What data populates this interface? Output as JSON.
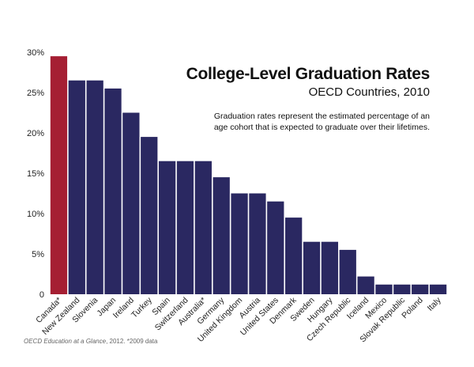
{
  "chart_data": {
    "type": "bar",
    "title": "College-Level Graduation Rates",
    "subtitle": "OECD Countries, 2010",
    "description": "Graduation rates represent the estimated percentage of an age cohort that is expected to graduate over their lifetimes.",
    "source_title": "OECD Education at a Glance",
    "source_rest": ", 2012.   *2009 data",
    "categories": [
      "Canada*",
      "New Zealand",
      "Slovenia",
      "Japan",
      "Ireland",
      "Turkey",
      "Spain",
      "Switzerland",
      "Australia*",
      "Germany",
      "United Kingdom",
      "Austria",
      "United States",
      "Denmark",
      "Sweden",
      "Hungary",
      "Czech Republic",
      "Iceland",
      "Mexico",
      "Slovak Republic",
      "Poland",
      "Italy"
    ],
    "values": [
      29.5,
      26.5,
      26.5,
      25.5,
      22.5,
      19.5,
      16.5,
      16.5,
      16.5,
      14.5,
      12.5,
      12.5,
      11.5,
      9.5,
      6.5,
      6.5,
      5.5,
      2.2,
      1.2,
      1.2,
      1.2,
      1.2
    ],
    "yticks": [
      "0",
      "5%",
      "10%",
      "15%",
      "20%",
      "25%",
      "30%"
    ],
    "ylim": [
      0,
      30
    ],
    "grid": false,
    "colors": {
      "highlight": "#a51f33",
      "bar": "#2a2861"
    },
    "highlight_index": 0
  }
}
